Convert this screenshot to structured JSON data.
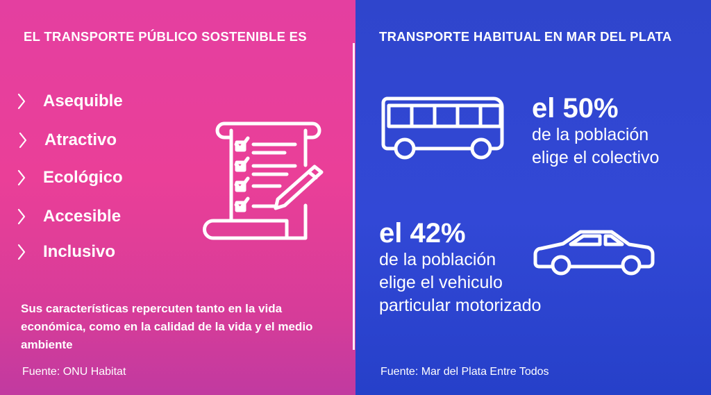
{
  "left": {
    "title": "EL TRANSPORTE PÚBLICO SOSTENIBLE ES",
    "items": [
      {
        "label": "Asequible"
      },
      {
        "label": "Atractivo"
      },
      {
        "label": "Ecológico"
      },
      {
        "label": "Accesible"
      },
      {
        "label": "Inclusivo"
      }
    ],
    "note": "Sus características repercuten tanto en la vida económica, como en la calidad de la vida y el medio ambiente",
    "source": "Fuente: ONU Habitat",
    "icon": "checklist-document-pencil-icon"
  },
  "right": {
    "title": "TRANSPORTE HABITUAL EN MAR DEL PLATA",
    "stat1": {
      "pct": "el 50%",
      "line1": "de la población",
      "line2": "elige el colectivo",
      "icon": "bus-icon"
    },
    "stat2": {
      "pct": "el 42%",
      "line1": "de la población",
      "line2": "elige el vehiculo",
      "line3": "particular motorizado",
      "icon": "car-icon"
    },
    "source": "Fuente: Mar del Plata Entre Todos"
  },
  "colors": {
    "left_bg": "#e43fa0",
    "right_bg": "#3248d6",
    "text": "#ffffff"
  }
}
